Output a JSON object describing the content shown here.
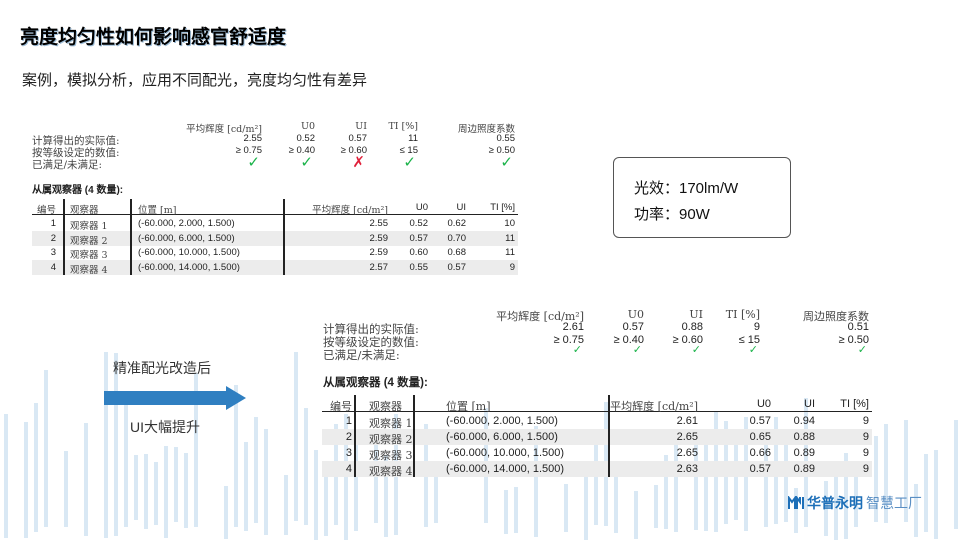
{
  "title": "亮度均匀性如何影响感官舒适度",
  "subtitle": "案例，模拟分析，应用不同配光，亮度均匀性有差异",
  "colors": {
    "accent": "#2f7fc1",
    "check": "#1bb34a",
    "cross": "#e0203a",
    "background_bars": "#d9e8f4"
  },
  "before": {
    "summary": {
      "columns": [
        "平均辉度 [cd/m²]",
        "U0",
        "UI",
        "TI [%]",
        "周边照度系数"
      ],
      "rows": [
        {
          "label": "计算得出的实际值:",
          "values": [
            "2.55",
            "0.52",
            "0.57",
            "11",
            "0.55"
          ]
        },
        {
          "label": "按等级设定的数值:",
          "values": [
            "≥ 0.75",
            "≥ 0.40",
            "≥ 0.60",
            "≤ 15",
            "≥ 0.50"
          ]
        },
        {
          "label": "已满足/未满足:",
          "status": [
            "check",
            "check",
            "cross",
            "check",
            "check"
          ]
        }
      ]
    },
    "observers_title": "从属观察器 (4 数量):",
    "table": {
      "headers": [
        "编号",
        "观察器",
        "位置 [m]",
        "平均辉度 [cd/m²]",
        "U0",
        "UI",
        "TI [%]"
      ],
      "rows": [
        [
          "1",
          "观察器 1",
          "(-60.000, 2.000, 1.500)",
          "2.55",
          "0.52",
          "0.62",
          "10"
        ],
        [
          "2",
          "观察器 2",
          "(-60.000, 6.000, 1.500)",
          "2.59",
          "0.57",
          "0.70",
          "11"
        ],
        [
          "3",
          "观察器 3",
          "(-60.000, 10.000, 1.500)",
          "2.59",
          "0.60",
          "0.68",
          "11"
        ],
        [
          "4",
          "观察器 4",
          "(-60.000, 14.000, 1.500)",
          "2.57",
          "0.55",
          "0.57",
          "9"
        ]
      ]
    }
  },
  "after": {
    "summary": {
      "columns": [
        "平均辉度 [cd/m²]",
        "U0",
        "UI",
        "TI [%]",
        "周边照度系数"
      ],
      "rows": [
        {
          "label": "计算得出的实际值:",
          "values": [
            "2.61",
            "0.57",
            "0.88",
            "9",
            "0.51"
          ]
        },
        {
          "label": "按等级设定的数值:",
          "values": [
            "≥ 0.75",
            "≥ 0.40",
            "≥ 0.60",
            "≤ 15",
            "≥ 0.50"
          ]
        },
        {
          "label": "已满足/未满足:",
          "status": [
            "check",
            "check",
            "check",
            "check",
            "check"
          ]
        }
      ]
    },
    "observers_title": "从属观察器 (4 数量):",
    "table": {
      "headers": [
        "编号",
        "观察器",
        "位置 [m]",
        "平均辉度 [cd/m²]",
        "U0",
        "UI",
        "TI [%]"
      ],
      "rows": [
        [
          "1",
          "观察器 1",
          "(-60.000, 2.000, 1.500)",
          "2.61",
          "0.57",
          "0.94",
          "9"
        ],
        [
          "2",
          "观察器 2",
          "(-60.000, 6.000, 1.500)",
          "2.65",
          "0.65",
          "0.88",
          "9"
        ],
        [
          "3",
          "观察器 3",
          "(-60.000, 10.000, 1.500)",
          "2.65",
          "0.66",
          "0.89",
          "9"
        ],
        [
          "4",
          "观察器 4",
          "(-60.000, 14.000, 1.500)",
          "2.63",
          "0.57",
          "0.89",
          "9"
        ]
      ]
    }
  },
  "info": {
    "efficacy": "光效：170lm/W",
    "power": "功率：90W"
  },
  "arrow": {
    "top_label": "精准配光改造后",
    "bottom_label": "UI大幅提升",
    "icon": "right-arrow-icon"
  },
  "logo": {
    "brand": "华普永明",
    "sub": "智慧工厂",
    "icon": "logo-mark-icon"
  }
}
